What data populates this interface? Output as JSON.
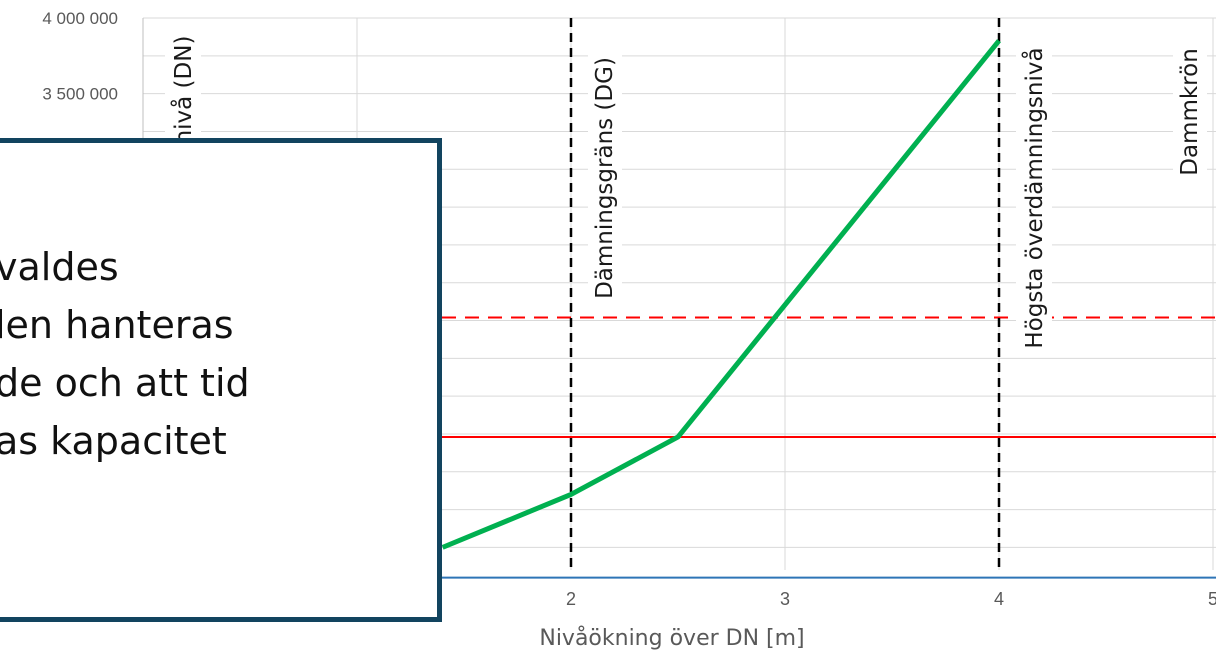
{
  "chart_data": {
    "type": "line",
    "title": "",
    "xlabel": "Nivåökning över DN [m]",
    "ylabel": "",
    "xlim": [
      0,
      5
    ],
    "ylim": [
      0,
      4000000
    ],
    "x_ticks": [
      "2",
      "3",
      "4",
      "5"
    ],
    "y_ticks": [
      "4 000 000",
      "3 500 000"
    ],
    "grid": true,
    "series": [
      {
        "color": "#00b050",
        "x": [
          1.4,
          2.0,
          2.5,
          4.0
        ],
        "y": [
          500000,
          850000,
          1230000,
          3850000
        ]
      }
    ],
    "reference_lines": {
      "horizontal": [
        {
          "y": 2020000,
          "color": "#ff0000",
          "style": "dashed"
        },
        {
          "y": 1230000,
          "color": "#ff0000",
          "style": "solid"
        },
        {
          "y": 300000,
          "color": "#2e75b6",
          "style": "solid"
        }
      ],
      "vertical": [
        {
          "x": 0,
          "label": "nivå (DN)"
        },
        {
          "x": 2,
          "label": "Dämningsgräns (DG)"
        },
        {
          "x": 4,
          "label": "Högsta överdämningsnivå"
        },
        {
          "x": 5,
          "label": "Dammkrön"
        }
      ]
    }
  },
  "overlay": {
    "lines": [
      "valdes",
      "len hanteras",
      "de och att tid",
      "as kapacitet"
    ]
  }
}
